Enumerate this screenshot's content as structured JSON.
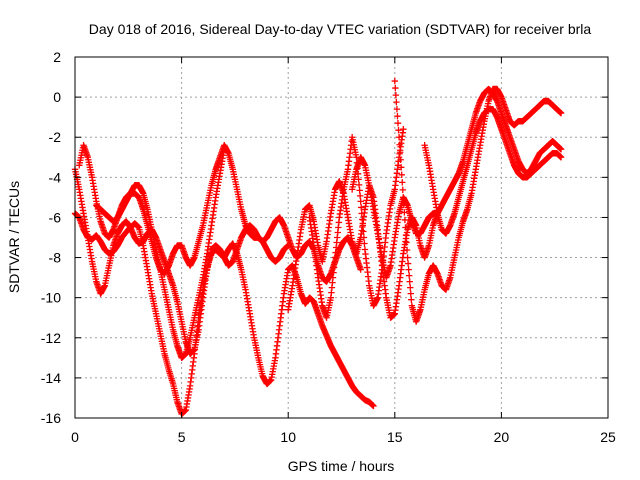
{
  "chart_data": {
    "type": "scatter",
    "title": "Day 018 of 2016, Sidereal Day-to-day VTEC variation (SDTVAR) for receiver brla",
    "xlabel": "GPS time / hours",
    "ylabel": "SDTVAR / TECUs",
    "xlim": [
      0,
      25
    ],
    "ylim": [
      -16,
      2
    ],
    "xticks": [
      "0",
      "5",
      "10",
      "15",
      "20",
      "25"
    ],
    "yticks": [
      "2",
      "0",
      "-2",
      "-4",
      "-6",
      "-8",
      "-10",
      "-12",
      "-14",
      "-16"
    ],
    "grid": true,
    "marker": "+",
    "color": "#ff0000",
    "series": [
      {
        "x": [
          0.0,
          0.2,
          0.4,
          0.6,
          0.8,
          1.0,
          1.2,
          1.4,
          1.6,
          1.8,
          2.0,
          2.2,
          2.5,
          2.8,
          3.0,
          3.2,
          3.4,
          3.6,
          3.8,
          4.0,
          4.2,
          4.4,
          4.6,
          4.8,
          5.0,
          5.2,
          5.4,
          5.6,
          5.8,
          6.0,
          6.2,
          6.4,
          6.6,
          6.8,
          7.0,
          7.2,
          7.4,
          7.6,
          7.8,
          8.0,
          8.2,
          8.4,
          8.6,
          8.8,
          9.0,
          9.2,
          9.4,
          9.6,
          9.8,
          10.0,
          10.2,
          10.4,
          10.6,
          10.8,
          11.0,
          11.2,
          11.4,
          11.6,
          11.8,
          12.0,
          12.2,
          12.4,
          12.6,
          12.8,
          13.0,
          13.2,
          13.4,
          13.6,
          13.8,
          14.0
        ],
        "y": [
          -5.8,
          -6.0,
          -6.6,
          -7.0,
          -7.1,
          -6.9,
          -7.2,
          -7.6,
          -7.8,
          -7.7,
          -7.4,
          -7.0,
          -6.6,
          -6.3,
          -6.5,
          -7.4,
          -8.6,
          -9.8,
          -10.8,
          -11.8,
          -12.8,
          -13.6,
          -14.3,
          -15.2,
          -15.8,
          -15.6,
          -14.4,
          -12.8,
          -11.0,
          -9.6,
          -8.5,
          -7.8,
          -7.6,
          -7.8,
          -8.0,
          -7.6,
          -7.3,
          -7.8,
          -8.6,
          -9.6,
          -10.8,
          -12.0,
          -13.0,
          -13.9,
          -14.3,
          -14.1,
          -13.0,
          -11.4,
          -9.8,
          -8.6,
          -8.4,
          -9.0,
          -9.8,
          -10.3,
          -10.0,
          -10.2,
          -10.8,
          -11.4,
          -11.9,
          -12.4,
          -12.8,
          -13.2,
          -13.6,
          -14.0,
          -14.4,
          -14.7,
          -14.9,
          -15.1,
          -15.2,
          -15.4
        ]
      },
      {
        "x": [
          0.0,
          0.2,
          0.4,
          0.6,
          0.8,
          1.0,
          1.2,
          1.4,
          1.6,
          1.8,
          2.0,
          2.2,
          2.4,
          2.6,
          2.8,
          3.0,
          3.2,
          3.4,
          3.6,
          3.8,
          4.0,
          4.2,
          4.4,
          4.6,
          4.8,
          5.0,
          5.2,
          5.4,
          5.6,
          5.8,
          6.0,
          6.2,
          6.4,
          6.6,
          6.8,
          7.0,
          7.2,
          7.4,
          7.6,
          7.8,
          8.0,
          8.2,
          8.4,
          8.6,
          8.8,
          9.0,
          9.2,
          9.4,
          9.6,
          9.8,
          10.0,
          10.2,
          10.4,
          10.6,
          10.8,
          11.0,
          11.2,
          11.4,
          11.6,
          11.8,
          12.0,
          12.2,
          12.4,
          12.6,
          12.8,
          13.0,
          13.2,
          13.4
        ],
        "y": [
          -3.6,
          -4.6,
          -5.8,
          -7.0,
          -8.2,
          -9.2,
          -9.8,
          -9.4,
          -8.4,
          -7.4,
          -6.8,
          -6.4,
          -6.2,
          -6.5,
          -7.0,
          -7.3,
          -7.2,
          -6.8,
          -6.6,
          -7.0,
          -7.6,
          -8.2,
          -8.8,
          -9.4,
          -10.2,
          -11.2,
          -12.2,
          -12.8,
          -12.6,
          -11.6,
          -10.0,
          -8.6,
          -7.6,
          -7.4,
          -7.6,
          -8.0,
          -8.4,
          -8.2,
          -7.6,
          -7.0,
          -6.6,
          -6.4,
          -6.6,
          -7.0,
          -7.2,
          -7.0,
          -6.6,
          -6.2,
          -6.0,
          -6.4,
          -7.0,
          -7.6,
          -8.0,
          -7.8,
          -7.4,
          -7.2,
          -7.6,
          -8.4,
          -9.0,
          -9.2,
          -8.8,
          -8.2,
          -7.6,
          -7.2,
          -7.0,
          -7.4,
          -8.0,
          -8.6
        ]
      },
      {
        "x": [
          0.2,
          0.4,
          0.6,
          0.8,
          1.0,
          1.2,
          1.4,
          1.6,
          1.8,
          2.0,
          2.2,
          2.4,
          2.6,
          2.8,
          3.0,
          3.2,
          3.4,
          3.6,
          3.8,
          4.0,
          4.2,
          4.4,
          4.6,
          4.8,
          5.0,
          5.2,
          5.4,
          5.6,
          5.8,
          6.0,
          6.2,
          6.4,
          6.6,
          6.8,
          7.0,
          7.2,
          7.4,
          7.6,
          7.8,
          8.0,
          8.2,
          8.4,
          8.6,
          8.8,
          9.0,
          9.2,
          9.4,
          9.6,
          9.8,
          10.0
        ],
        "y": [
          -3.4,
          -2.4,
          -3.0,
          -4.0,
          -5.2,
          -6.2,
          -6.8,
          -7.0,
          -6.6,
          -6.0,
          -5.4,
          -5.0,
          -4.8,
          -4.8,
          -5.0,
          -5.6,
          -6.4,
          -7.2,
          -8.0,
          -8.6,
          -8.8,
          -8.4,
          -7.8,
          -7.4,
          -7.4,
          -8.0,
          -8.4,
          -8.0,
          -7.2,
          -6.4,
          -5.4,
          -4.4,
          -3.6,
          -3.0,
          -2.4,
          -2.8,
          -3.6,
          -4.6,
          -5.6,
          -6.4,
          -6.8,
          -7.0,
          -7.0,
          -7.2,
          -7.6,
          -8.0,
          -8.2,
          -8.0,
          -7.6,
          -7.4
        ]
      },
      {
        "x": [
          1.0,
          1.2,
          1.4,
          1.6,
          1.8,
          2.0,
          2.2,
          2.4,
          2.6,
          2.8,
          3.0,
          3.2,
          3.4,
          3.6,
          3.8,
          4.0,
          4.2,
          4.4,
          4.6,
          4.8,
          5.0,
          5.2,
          5.4,
          5.6,
          5.8,
          6.0,
          6.2,
          6.4,
          6.6,
          6.8,
          7.0
        ],
        "y": [
          -5.4,
          -5.6,
          -5.8,
          -6.0,
          -6.2,
          -6.0,
          -5.6,
          -5.2,
          -4.8,
          -4.4,
          -4.4,
          -4.8,
          -5.6,
          -6.6,
          -7.6,
          -8.6,
          -9.6,
          -10.6,
          -11.6,
          -12.4,
          -13.0,
          -12.8,
          -12.0,
          -11.0,
          -10.0,
          -9.0,
          -7.8,
          -6.4,
          -5.0,
          -3.8,
          -2.6
        ]
      },
      {
        "x": [
          13.0,
          13.2,
          13.4,
          13.6,
          13.8,
          14.0,
          14.2,
          14.4,
          14.6,
          14.8,
          15.0,
          15.2,
          15.4,
          15.6,
          15.8,
          16.0,
          16.2,
          16.4,
          16.6,
          16.8,
          17.0,
          17.2,
          17.4,
          17.6,
          17.8,
          18.0,
          18.2,
          18.4,
          18.6,
          18.8,
          19.0,
          19.2,
          19.4,
          19.6,
          19.8,
          20.0,
          20.2,
          20.4,
          20.6,
          20.8,
          21.0,
          21.2,
          21.4,
          21.6,
          21.8,
          22.0,
          22.2,
          22.4,
          22.6,
          22.8
        ],
        "y": [
          -4.6,
          -3.6,
          -3.0,
          -3.4,
          -4.4,
          -5.6,
          -6.8,
          -8.0,
          -9.0,
          -8.4,
          -7.0,
          -5.8,
          -5.0,
          -5.4,
          -6.2,
          -6.8,
          -6.8,
          -6.4,
          -6.0,
          -5.8,
          -5.8,
          -5.4,
          -5.0,
          -4.6,
          -4.2,
          -3.8,
          -3.2,
          -2.4,
          -1.6,
          -0.8,
          -0.2,
          0.2,
          0.4,
          0.2,
          -0.2,
          -0.8,
          -1.4,
          -2.0,
          -2.6,
          -3.2,
          -3.6,
          -3.8,
          -3.6,
          -3.2,
          -2.8,
          -2.6,
          -2.4,
          -2.2,
          -2.4,
          -2.6
        ]
      },
      {
        "x": [
          15.0,
          15.2,
          15.4,
          15.6,
          15.8,
          16.0,
          16.2,
          16.4,
          16.6,
          16.8,
          17.0,
          17.2,
          17.4,
          17.6,
          17.8,
          18.0,
          18.2,
          18.4,
          18.6,
          18.8,
          19.0,
          19.2,
          19.4,
          19.6,
          19.8,
          20.0,
          20.2,
          20.4,
          20.6,
          20.8,
          21.0,
          21.2,
          21.4,
          21.6,
          21.8,
          22.0,
          22.2,
          22.4,
          22.6,
          22.8
        ],
        "y": [
          0.8,
          -2.0,
          -5.0,
          -8.0,
          -10.4,
          -11.2,
          -10.6,
          -9.6,
          -8.8,
          -8.4,
          -8.8,
          -9.4,
          -9.6,
          -9.0,
          -8.0,
          -7.0,
          -6.2,
          -5.6,
          -4.8,
          -3.6,
          -2.4,
          -1.2,
          -0.2,
          0.4,
          0.4,
          0.0,
          -0.6,
          -1.2,
          -1.4,
          -1.2,
          -1.2,
          -1.0,
          -0.8,
          -0.6,
          -0.4,
          -0.2,
          -0.2,
          -0.4,
          -0.6,
          -0.8
        ]
      },
      {
        "x": [
          16.4,
          16.6,
          16.8,
          17.0,
          17.2,
          17.4,
          17.6,
          17.8,
          18.0,
          18.2,
          18.4,
          18.6,
          18.8,
          19.0,
          19.2,
          19.4,
          19.6,
          19.8,
          20.0,
          20.2,
          20.4,
          20.6,
          20.8,
          21.0,
          21.2,
          21.4,
          21.6,
          21.8,
          22.0,
          22.2,
          22.4,
          22.6,
          22.8
        ],
        "y": [
          -2.4,
          -3.4,
          -4.6,
          -5.8,
          -6.6,
          -6.8,
          -6.4,
          -5.8,
          -5.0,
          -4.2,
          -3.4,
          -2.6,
          -1.8,
          -1.2,
          -0.8,
          -0.6,
          -0.6,
          -1.0,
          -1.6,
          -2.2,
          -2.8,
          -3.4,
          -3.8,
          -4.0,
          -4.0,
          -3.8,
          -3.6,
          -3.4,
          -3.2,
          -3.0,
          -2.8,
          -2.8,
          -3.0
        ]
      },
      {
        "x": [
          10.0,
          10.2,
          10.4,
          10.6,
          10.8,
          11.0,
          11.2,
          11.4,
          11.6,
          11.8,
          12.0,
          12.2,
          12.4,
          12.6,
          12.8,
          13.0,
          13.2,
          13.4,
          13.6,
          13.8,
          14.0,
          14.2,
          14.4,
          14.6,
          14.8,
          15.0,
          15.2,
          15.4,
          15.6,
          15.8,
          16.0,
          16.2,
          16.4,
          16.6,
          16.8,
          17.0
        ],
        "y": [
          -10.6,
          -9.4,
          -8.0,
          -6.6,
          -5.6,
          -5.4,
          -6.2,
          -7.4,
          -8.2,
          -7.2,
          -5.8,
          -4.6,
          -4.2,
          -4.8,
          -6.0,
          -7.2,
          -7.8,
          -7.0,
          -5.6,
          -4.4,
          -5.0,
          -6.6,
          -8.4,
          -10.0,
          -11.0,
          -10.8,
          -9.4,
          -7.8,
          -6.6,
          -6.0,
          -6.4,
          -7.4,
          -8.0,
          -7.4,
          -6.4,
          -5.8
        ]
      },
      {
        "x": [
          11.0,
          11.2,
          11.4,
          11.6,
          11.8,
          12.0,
          12.2,
          12.4,
          12.6,
          12.8,
          13.0,
          13.2,
          13.4,
          13.6,
          13.8,
          14.0,
          14.2,
          14.4,
          14.6,
          14.8,
          15.0,
          15.2,
          15.4
        ],
        "y": [
          -6.0,
          -7.4,
          -9.0,
          -10.4,
          -11.0,
          -10.0,
          -8.0,
          -6.0,
          -4.6,
          -3.6,
          -2.0,
          -3.0,
          -5.2,
          -7.6,
          -9.4,
          -10.4,
          -10.0,
          -8.6,
          -6.8,
          -5.4,
          -4.6,
          -3.0,
          -1.6
        ]
      }
    ]
  }
}
